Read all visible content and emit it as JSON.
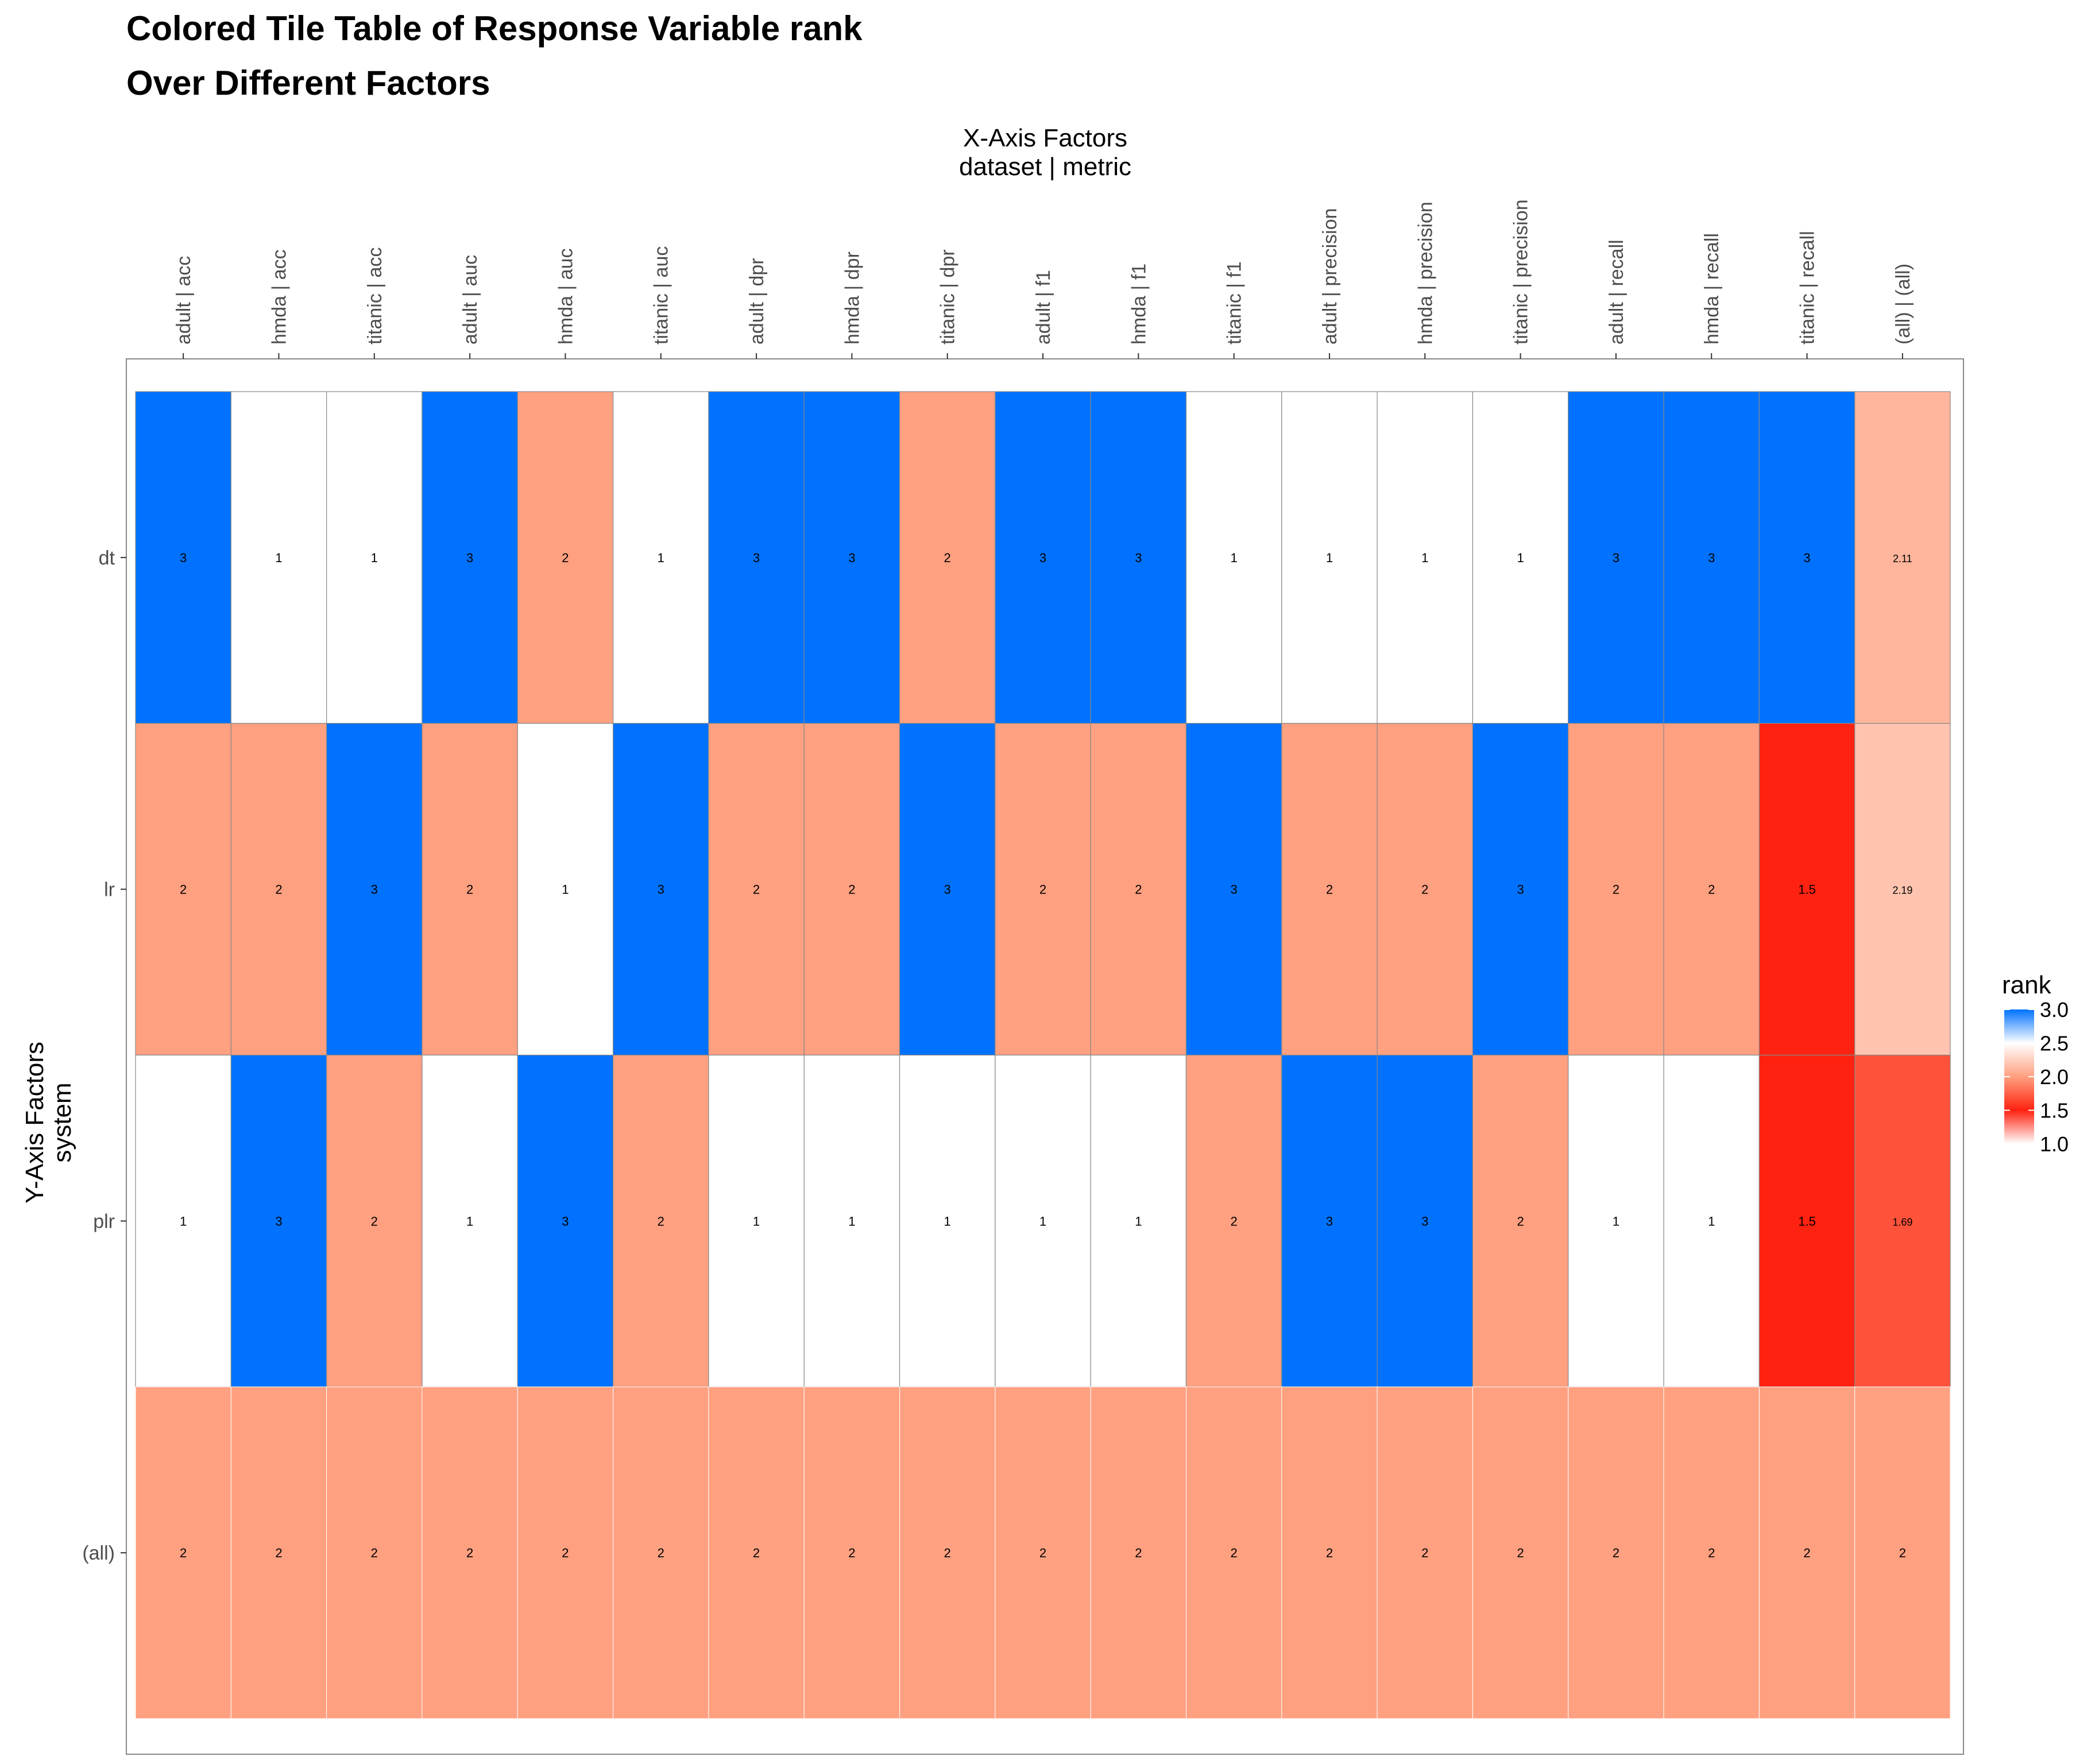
{
  "chart_data": {
    "type": "heatmap",
    "title": [
      "Colored Tile Table of Response Variable rank",
      "Over Different Factors"
    ],
    "x_axis_title": [
      "X-Axis Factors",
      "dataset | metric"
    ],
    "y_axis_title": [
      "Y-Axis Factors",
      "system"
    ],
    "x_categories": [
      "adult | acc",
      "hmda | acc",
      "titanic | acc",
      "adult | auc",
      "hmda | auc",
      "titanic | auc",
      "adult | dpr",
      "hmda | dpr",
      "titanic | dpr",
      "adult | f1",
      "hmda | f1",
      "titanic | f1",
      "adult | precision",
      "hmda | precision",
      "titanic | precision",
      "adult | recall",
      "hmda | recall",
      "titanic | recall",
      "(all) | (all)"
    ],
    "y_categories": [
      "dt",
      "lr",
      "plr",
      "(all)"
    ],
    "values": [
      [
        3,
        1,
        1,
        3,
        2,
        1,
        3,
        3,
        2,
        3,
        3,
        1,
        1,
        1,
        1,
        3,
        3,
        3,
        2.11
      ],
      [
        2,
        2,
        3,
        2,
        1,
        3,
        2,
        2,
        3,
        2,
        2,
        3,
        2,
        2,
        3,
        2,
        2,
        1.5,
        2.19
      ],
      [
        1,
        3,
        2,
        1,
        3,
        2,
        1,
        1,
        1,
        1,
        1,
        2,
        3,
        3,
        2,
        1,
        1,
        1.5,
        1.69
      ],
      [
        2,
        2,
        2,
        2,
        2,
        2,
        2,
        2,
        2,
        2,
        2,
        2,
        2,
        2,
        2,
        2,
        2,
        2,
        2
      ]
    ],
    "cell_labels": [
      [
        "3",
        "1",
        "1",
        "3",
        "2",
        "1",
        "3",
        "3",
        "2",
        "3",
        "3",
        "1",
        "1",
        "1",
        "1",
        "3",
        "3",
        "3",
        "2.11"
      ],
      [
        "2",
        "2",
        "3",
        "2",
        "1",
        "3",
        "2",
        "2",
        "3",
        "2",
        "2",
        "3",
        "2",
        "2",
        "3",
        "2",
        "2",
        "1.5",
        "2.19"
      ],
      [
        "1",
        "3",
        "2",
        "1",
        "3",
        "2",
        "1",
        "1",
        "1",
        "1",
        "1",
        "2",
        "3",
        "3",
        "2",
        "1",
        "1",
        "1.5",
        "1.69"
      ],
      [
        "2",
        "2",
        "2",
        "2",
        "2",
        "2",
        "2",
        "2",
        "2",
        "2",
        "2",
        "2",
        "2",
        "2",
        "2",
        "2",
        "2",
        "2",
        "2"
      ]
    ],
    "x_axis_position": "top",
    "legend": {
      "title": "rank",
      "position": "right",
      "labels": [
        "3.0",
        "2.5",
        "2.0",
        "1.5",
        "1.0"
      ],
      "range": [
        1,
        3
      ]
    },
    "colors": {
      "high": "#0072ff",
      "mid": "#ffa080",
      "red": "#ff2210",
      "low": "#ffffff",
      "cell_border": "#888888",
      "panel_border": "#888888"
    }
  }
}
